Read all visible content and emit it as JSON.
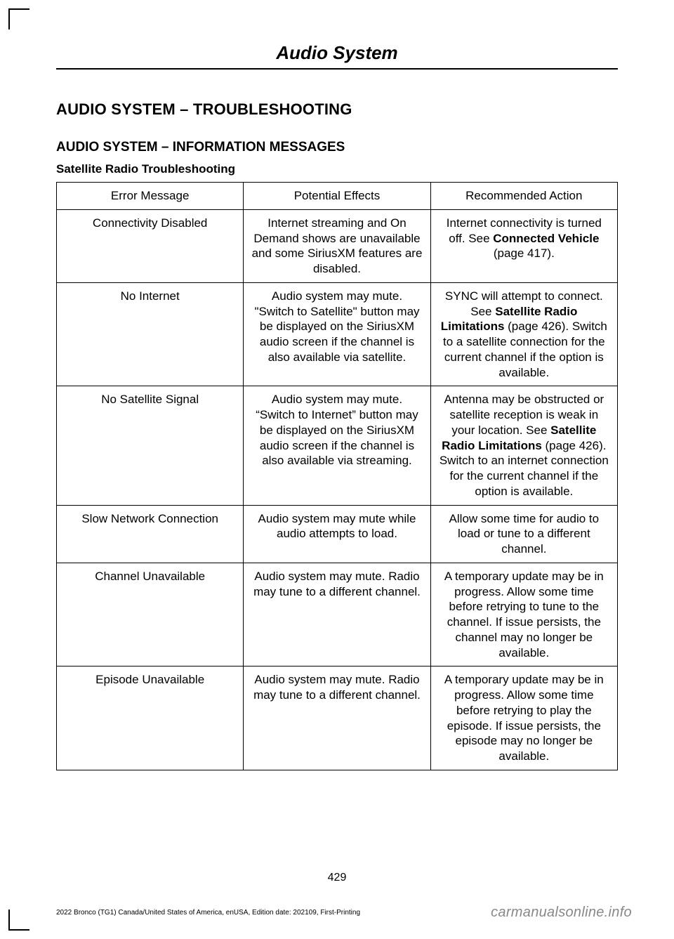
{
  "chapter_title": "Audio System",
  "heading1": "AUDIO SYSTEM – TROUBLESHOOTING",
  "heading2": "AUDIO SYSTEM – INFORMATION MESSAGES",
  "heading3": "Satellite Radio Troubleshooting",
  "table": {
    "headers": [
      "Error Message",
      "Potential Effects",
      "Recommended Action"
    ],
    "rows": [
      {
        "msg": "Connectivity Disabled",
        "effect": "Internet streaming and On Demand shows are unavailable and some SiriusXM features are disabled.",
        "action_pre": "Internet connectivity is turned off.  See ",
        "action_bold": "Connected Vehicle",
        "action_post": " (page 417)."
      },
      {
        "msg": "No Internet",
        "effect": "Audio system may mute. \"Switch to Satellite\" button may be displayed on the SiriusXM audio screen if the channel is also available via satellite.",
        "action_pre": "SYNC will attempt to connect.  See ",
        "action_bold": "Satellite Radio Limitations",
        "action_post": " (page 426).  Switch to a satellite connection for the current channel if the option is available."
      },
      {
        "msg": "No Satellite Signal",
        "effect": "Audio system may mute. “Switch to Internet” button may be displayed on the SiriusXM audio screen if the channel is also available via streaming.",
        "action_pre": "Antenna may be obstructed or satellite reception is weak in your location.  See ",
        "action_bold": "Satellite Radio Limitations",
        "action_post": " (page 426).  Switch to an internet connection for the current channel if the option is available."
      },
      {
        "msg": "Slow Network Connection",
        "effect": "Audio system may mute while audio attempts to load.",
        "action_pre": "Allow some time for audio to load or tune to a different channel.",
        "action_bold": "",
        "action_post": ""
      },
      {
        "msg": "Channel Unavailable",
        "effect": "Audio system may mute. Radio may tune to a different channel.",
        "action_pre": "A temporary update may be in progress. Allow some time before retrying to tune to the channel. If issue persists, the channel may no longer be available.",
        "action_bold": "",
        "action_post": ""
      },
      {
        "msg": "Episode Unavailable",
        "effect": "Audio system may mute. Radio may tune to a different channel.",
        "action_pre": "A temporary update may be in progress. Allow some time before retrying to play the episode. If issue persists, the episode may no longer be available.",
        "action_bold": "",
        "action_post": ""
      }
    ]
  },
  "page_number": "429",
  "footer_left": "2022 Bronco (TG1) Canada/United States of America, enUSA, Edition date: 202109, First-Printing",
  "footer_right": "carmanualsonline.info"
}
